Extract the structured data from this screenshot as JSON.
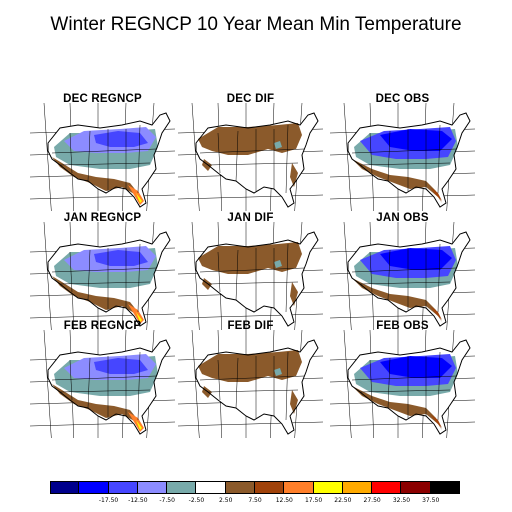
{
  "title": "Winter REGNCP 10 Year Mean Min Temperature",
  "panels": [
    {
      "label": "DEC REGNCP",
      "kind": "model",
      "month": "DEC"
    },
    {
      "label": "DEC DIF",
      "kind": "diff",
      "month": "DEC"
    },
    {
      "label": "DEC OBS",
      "kind": "obs",
      "month": "DEC"
    },
    {
      "label": "JAN REGNCP",
      "kind": "model",
      "month": "JAN"
    },
    {
      "label": "JAN DIF",
      "kind": "diff",
      "month": "JAN"
    },
    {
      "label": "JAN OBS",
      "kind": "obs",
      "month": "JAN"
    },
    {
      "label": "FEB REGNCP",
      "kind": "model",
      "month": "FEB"
    },
    {
      "label": "FEB DIF",
      "kind": "diff",
      "month": "FEB"
    },
    {
      "label": "FEB OBS",
      "kind": "obs",
      "month": "FEB"
    }
  ],
  "colorbar": {
    "colors": [
      "#00008c",
      "#0000ff",
      "#4646ff",
      "#8c8cff",
      "#78aaaa",
      "#ffffff",
      "#8b5a2b",
      "#a0420a",
      "#ff7f2a",
      "#ffff00",
      "#ffaa00",
      "#ff0000",
      "#8b0000",
      "#000000"
    ],
    "ticks": [
      "-17.50",
      "-12.50",
      "-7.50",
      "-2.50",
      "2.50",
      "7.50",
      "12.50",
      "17.50",
      "22.50",
      "27.50",
      "32.50",
      "37.50"
    ]
  }
}
